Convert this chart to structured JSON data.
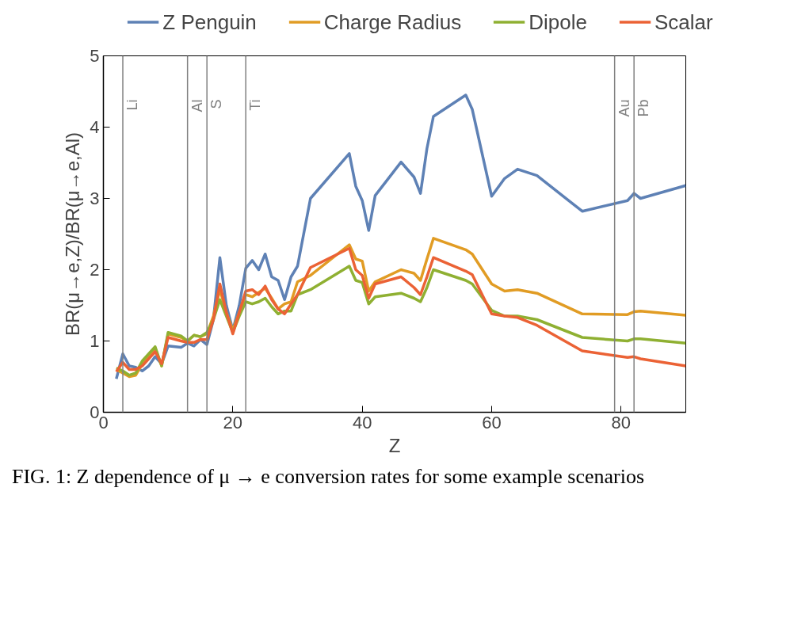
{
  "chart_data": {
    "type": "line",
    "xlabel": "Z",
    "ylabel": "BR(μ→e,Z)/BR(μ→e,Al)",
    "x": [
      2,
      3,
      4,
      5,
      6,
      7,
      8,
      9,
      10,
      12,
      13,
      14,
      15,
      16,
      17,
      18,
      19,
      20,
      21,
      22,
      23,
      24,
      25,
      26,
      27,
      28,
      29,
      30,
      32,
      38,
      39,
      40,
      41,
      42,
      46,
      48,
      49,
      50,
      51,
      56,
      57,
      60,
      62,
      64,
      67,
      74,
      81,
      82,
      83,
      90
    ],
    "series": [
      {
        "name": "Z Penguin",
        "color": "#5e81b5",
        "values": [
          0.47,
          0.82,
          0.65,
          0.63,
          0.58,
          0.65,
          0.78,
          0.68,
          0.93,
          0.91,
          0.97,
          0.93,
          1.02,
          0.95,
          1.3,
          2.17,
          1.5,
          1.15,
          1.5,
          2.02,
          2.13,
          2.0,
          2.22,
          1.9,
          1.85,
          1.58,
          1.9,
          2.05,
          3.0,
          3.63,
          3.17,
          2.97,
          2.55,
          3.04,
          3.51,
          3.3,
          3.07,
          3.7,
          4.15,
          4.45,
          4.25,
          3.03,
          3.28,
          3.41,
          3.32,
          2.82,
          2.97,
          3.07,
          3.0,
          3.18
        ]
      },
      {
        "name": "Charge Radius",
        "color": "#e19c24",
        "values": [
          0.6,
          0.55,
          0.5,
          0.52,
          0.68,
          0.8,
          0.9,
          0.65,
          1.1,
          1.05,
          1.0,
          1.08,
          1.06,
          1.1,
          1.35,
          1.72,
          1.4,
          1.15,
          1.4,
          1.65,
          1.62,
          1.68,
          1.74,
          1.6,
          1.45,
          1.52,
          1.55,
          1.83,
          1.92,
          2.35,
          2.15,
          2.12,
          1.7,
          1.83,
          2.0,
          1.95,
          1.85,
          2.15,
          2.44,
          2.28,
          2.22,
          1.8,
          1.7,
          1.72,
          1.67,
          1.38,
          1.37,
          1.41,
          1.42,
          1.36
        ]
      },
      {
        "name": "Dipole",
        "color": "#8fb032",
        "values": [
          0.62,
          0.58,
          0.52,
          0.55,
          0.72,
          0.82,
          0.92,
          0.65,
          1.12,
          1.07,
          1.0,
          1.08,
          1.06,
          1.12,
          1.3,
          1.58,
          1.35,
          1.12,
          1.35,
          1.55,
          1.52,
          1.55,
          1.6,
          1.48,
          1.38,
          1.42,
          1.42,
          1.65,
          1.72,
          2.05,
          1.85,
          1.82,
          1.52,
          1.62,
          1.67,
          1.6,
          1.55,
          1.75,
          2.0,
          1.85,
          1.8,
          1.43,
          1.35,
          1.35,
          1.3,
          1.05,
          1.0,
          1.03,
          1.03,
          0.97
        ]
      },
      {
        "name": "Scalar",
        "color": "#eb6235",
        "values": [
          0.57,
          0.7,
          0.6,
          0.6,
          0.65,
          0.75,
          0.85,
          0.68,
          1.05,
          1.0,
          0.98,
          0.98,
          1.02,
          1.02,
          1.3,
          1.8,
          1.4,
          1.1,
          1.4,
          1.7,
          1.72,
          1.65,
          1.77,
          1.58,
          1.45,
          1.38,
          1.52,
          1.65,
          2.03,
          2.3,
          2.0,
          1.92,
          1.6,
          1.8,
          1.9,
          1.75,
          1.65,
          1.9,
          2.17,
          1.98,
          1.93,
          1.38,
          1.35,
          1.33,
          1.22,
          0.86,
          0.77,
          0.78,
          0.75,
          0.65
        ]
      }
    ],
    "xlim": [
      0,
      90
    ],
    "xticks": [
      0,
      20,
      40,
      60,
      80
    ],
    "ylim": [
      0,
      5
    ],
    "yticks": [
      0,
      1,
      2,
      3,
      4,
      5
    ],
    "ref_lines": [
      {
        "axis": "x",
        "value": 3,
        "label": "Li",
        "color": "#808080"
      },
      {
        "axis": "x",
        "value": 13,
        "label": "Al",
        "color": "#808080"
      },
      {
        "axis": "x",
        "value": 16,
        "label": "S",
        "color": "#808080"
      },
      {
        "axis": "x",
        "value": 22,
        "label": "Ti",
        "color": "#808080"
      },
      {
        "axis": "x",
        "value": 79,
        "label": "Au",
        "color": "#808080"
      },
      {
        "axis": "x",
        "value": 82,
        "label": "Pb",
        "color": "#808080"
      }
    ],
    "legend": "top",
    "grid": false,
    "line_style": "solid",
    "marker": "none",
    "annotations": [
      "FIG. 1: Z dependence of μ → e conversion rates for some example scenarios"
    ]
  }
}
